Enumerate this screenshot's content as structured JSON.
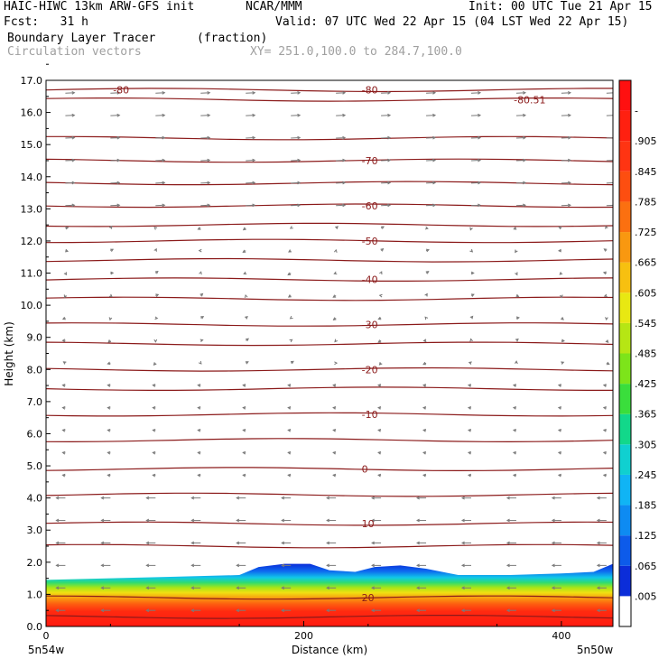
{
  "header": {
    "model": "HAIC-HIWC 13km ARW-GFS init",
    "org": "NCAR/MMM",
    "init": "Init: 00 UTC Tue 21 Apr 15",
    "fcst": "Fcst:   31 h",
    "valid": "Valid: 07 UTC Wed 22 Apr 15 (04 LST Wed 22 Apr 15)",
    "field": "Boundary Layer Tracer",
    "units": "(fraction)",
    "vectors": "Circulation vectors",
    "xy": "XY= 251.0,100.0 to 284.7,100.0"
  },
  "colors": {
    "contour": "#8b1a1a",
    "vector": "#7a7a7a",
    "tracer": "#ff2a10"
  },
  "chart_data": {
    "type": "heatmap",
    "xlabel": "Distance (km)",
    "ylabel": "Height (km)",
    "xlim": [
      0,
      440
    ],
    "ylim": [
      0,
      17
    ],
    "x_ticks": [
      0,
      200,
      400
    ],
    "y_ticks": [
      "0.0",
      "1.0",
      "2.0",
      "3.0",
      "4.0",
      "5.0",
      "6.0",
      "7.0",
      "8.0",
      "9.0",
      "10.0",
      "11.0",
      "12.0",
      "13.0",
      "14.0",
      "15.0",
      "16.0",
      "17.0"
    ],
    "x_end_labels": {
      "left": "5n54w",
      "right": "5n50w"
    },
    "boundary_layer_top_km": [
      [
        0,
        1.45
      ],
      [
        50,
        1.5
      ],
      [
        100,
        1.55
      ],
      [
        150,
        1.6
      ],
      [
        165,
        1.85
      ],
      [
        185,
        1.95
      ],
      [
        205,
        1.95
      ],
      [
        220,
        1.75
      ],
      [
        240,
        1.7
      ],
      [
        255,
        1.85
      ],
      [
        275,
        1.9
      ],
      [
        295,
        1.8
      ],
      [
        320,
        1.6
      ],
      [
        360,
        1.6
      ],
      [
        400,
        1.65
      ],
      [
        425,
        1.7
      ],
      [
        440,
        1.95
      ]
    ],
    "temperature_contours_c": [
      {
        "level": "-80",
        "height_km": 16.7,
        "label_x_km": 52
      },
      {
        "level": "-80",
        "height_km": 16.7,
        "label_x_km": 245
      },
      {
        "level": "-80.51",
        "height_km": 16.4,
        "label_x_km": 363
      },
      {
        "level": "-70",
        "height_km": 14.5,
        "label_x_km": 245
      },
      {
        "level": "-60",
        "height_km": 13.1,
        "label_x_km": 245
      },
      {
        "level": "-50",
        "height_km": 12.0,
        "label_x_km": 245
      },
      {
        "level": "-40",
        "height_km": 10.8,
        "label_x_km": 245
      },
      {
        "level": "-30",
        "height_km": 9.4,
        "label_x_km": 245
      },
      {
        "level": "-20",
        "height_km": 8.0,
        "label_x_km": 245
      },
      {
        "level": "-10",
        "height_km": 6.6,
        "label_x_km": 245
      },
      {
        "level": "0",
        "height_km": 4.9,
        "label_x_km": 245
      },
      {
        "level": "10",
        "height_km": 3.2,
        "label_x_km": 245
      },
      {
        "level": "20",
        "height_km": 0.9,
        "label_x_km": 245
      }
    ],
    "contour_heights_km": [
      16.7,
      16.4,
      15.2,
      14.5,
      13.8,
      13.1,
      12.5,
      12.0,
      11.4,
      10.8,
      10.2,
      9.4,
      8.8,
      8.0,
      7.4,
      6.6,
      5.8,
      4.9,
      4.1,
      3.2,
      2.5,
      0.9,
      0.3
    ],
    "colorbar": {
      "labels": [
        ".005",
        ".065",
        ".125",
        ".185",
        ".245",
        ".305",
        ".365",
        ".425",
        ".485",
        ".545",
        ".605",
        ".665",
        ".725",
        ".785",
        ".845",
        ".905",
        "-"
      ],
      "colors": [
        "#ffffff",
        "#0b2dd9",
        "#0d5bea",
        "#0e8bf2",
        "#10b4f5",
        "#10d0d0",
        "#12d88a",
        "#3ade3c",
        "#7de41a",
        "#b6e614",
        "#e8e812",
        "#f7c010",
        "#f99810",
        "#fb7010",
        "#fd4e10",
        "#ff3412",
        "#ff2010",
        "#ff1010"
      ]
    }
  }
}
